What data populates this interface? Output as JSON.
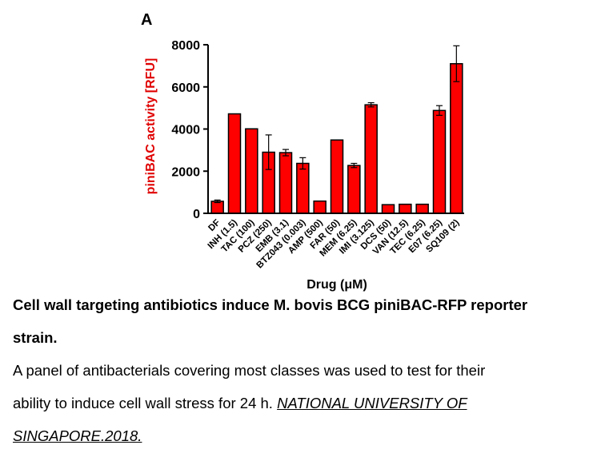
{
  "chart_data": {
    "type": "bar",
    "panel_label": "A",
    "ylabel": "piniBAC activity [RFU]",
    "xlabel": "Drug (μM)",
    "ylim": [
      0,
      8000
    ],
    "yticks": [
      "0",
      "2000",
      "4000",
      "6000",
      "8000"
    ],
    "ytick_values": [
      0,
      2000,
      4000,
      6000,
      8000
    ],
    "categories": [
      "DF",
      "INH (1.5)",
      "TAC (100)",
      "PCZ (250)",
      "EMB (3.1)",
      "BTZ043 (0.003)",
      "AMP (500)",
      "FAR (50)",
      "MEM (6.25)",
      "IMI (3.125)",
      "DCS (50)",
      "VAN (12.5)",
      "TEC (6.25)",
      "E07 (6.25)",
      "SQ109 (2)"
    ],
    "values": [
      570,
      4720,
      4010,
      2900,
      2880,
      2370,
      580,
      3480,
      2270,
      5150,
      410,
      430,
      430,
      4880,
      7100
    ],
    "errors": [
      60,
      0,
      0,
      820,
      150,
      270,
      0,
      0,
      100,
      100,
      0,
      0,
      0,
      230,
      850
    ],
    "bar_color": "#ff0000",
    "ylabel_color": "#e00000",
    "grid": false,
    "legend": "none"
  },
  "caption": {
    "title_line1": "Cell wall targeting antibiotics induce M. bovis BCG piniBAC-RFP reporter",
    "title_line2": "strain.",
    "body_line1": "A panel of antibacterials covering most classes was used to test for their",
    "body_line2_prefix": "ability to induce cell wall stress for 24 h. ",
    "citation_line1": "NATIONAL UNIVERSITY OF ",
    "citation_line2": "SINGAPORE.2018."
  }
}
